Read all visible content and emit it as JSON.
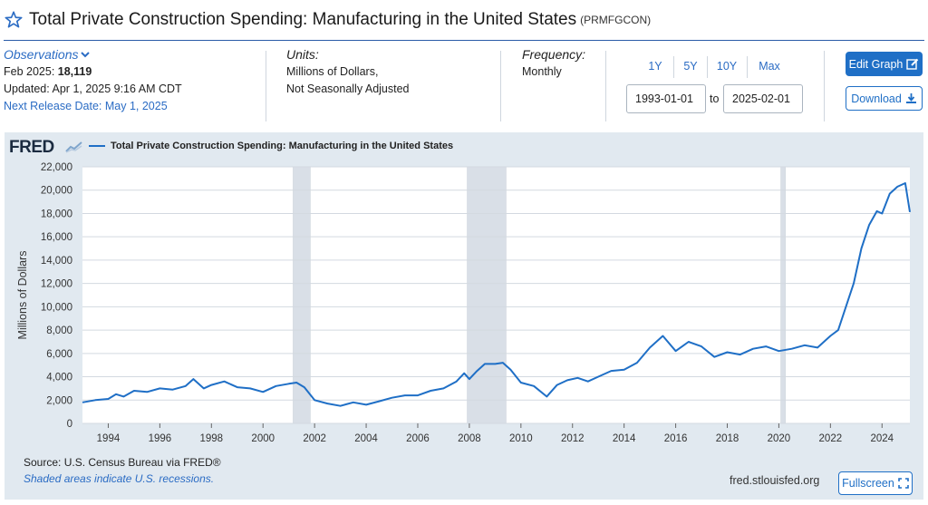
{
  "header": {
    "title": "Total Private Construction Spending: Manufacturing in the United States",
    "series_id": "(PRMFGCON)"
  },
  "observations": {
    "label": "Observations",
    "date_label": "Feb 2025:",
    "value": "18,119",
    "updated": "Updated: Apr 1, 2025 9:16 AM CDT",
    "next_release": "Next Release Date: May 1, 2025"
  },
  "units": {
    "label": "Units:",
    "line1": "Millions of Dollars,",
    "line2": "Not Seasonally Adjusted"
  },
  "frequency": {
    "label": "Frequency:",
    "value": "Monthly"
  },
  "range": {
    "buttons": [
      "1Y",
      "5Y",
      "10Y",
      "Max"
    ],
    "start": "1993-01-01",
    "to_label": "to",
    "end": "2025-02-01"
  },
  "actions": {
    "edit_graph": "Edit Graph",
    "download": "Download",
    "fullscreen": "Fullscreen"
  },
  "graph": {
    "logo": "FRED",
    "legend": "Total Private Construction Spending: Manufacturing in the United States",
    "source": "Source: U.S. Census Bureau via FRED®",
    "shaded_note": "Shaded areas indicate U.S. recessions.",
    "site": "fred.stlouisfed.org"
  },
  "colors": {
    "line": "#1f6fc6",
    "panel_bg": "#e1e9f0",
    "recession": "#d9dfe7",
    "accent": "#1f6fc6"
  },
  "chart_data": {
    "type": "line",
    "ylabel": "Millions of Dollars",
    "ylim": [
      0,
      22000
    ],
    "xlim": [
      1993.0,
      2025.08
    ],
    "y_ticks": [
      "0",
      "2,000",
      "4,000",
      "6,000",
      "8,000",
      "10,000",
      "12,000",
      "14,000",
      "16,000",
      "18,000",
      "20,000",
      "22,000"
    ],
    "x_ticks": [
      "1994",
      "1996",
      "1998",
      "2000",
      "2002",
      "2004",
      "2006",
      "2008",
      "2010",
      "2012",
      "2014",
      "2016",
      "2018",
      "2020",
      "2022",
      "2024"
    ],
    "grid": true,
    "legend_position": "top-left",
    "recessions": [
      [
        2001.17,
        2001.83
      ],
      [
        2007.92,
        2009.42
      ],
      [
        2020.08,
        2020.25
      ]
    ],
    "series": [
      {
        "name": "Total Private Construction Spending: Manufacturing in the United States",
        "x": [
          1993.0,
          1993.5,
          1994.0,
          1994.3,
          1994.6,
          1995.0,
          1995.5,
          1996.0,
          1996.5,
          1997.0,
          1997.3,
          1997.7,
          1998.0,
          1998.5,
          1999.0,
          1999.5,
          2000.0,
          2000.5,
          2001.0,
          2001.3,
          2001.6,
          2002.0,
          2002.5,
          2003.0,
          2003.5,
          2004.0,
          2004.5,
          2005.0,
          2005.5,
          2006.0,
          2006.5,
          2007.0,
          2007.5,
          2007.8,
          2008.0,
          2008.3,
          2008.6,
          2009.0,
          2009.3,
          2009.6,
          2010.0,
          2010.5,
          2011.0,
          2011.4,
          2011.8,
          2012.2,
          2012.6,
          2013.0,
          2013.5,
          2014.0,
          2014.5,
          2015.0,
          2015.5,
          2016.0,
          2016.5,
          2017.0,
          2017.5,
          2018.0,
          2018.5,
          2019.0,
          2019.5,
          2020.0,
          2020.5,
          2021.0,
          2021.5,
          2022.0,
          2022.3,
          2022.6,
          2022.9,
          2023.2,
          2023.5,
          2023.8,
          2024.0,
          2024.3,
          2024.6,
          2024.9,
          2025.08
        ],
        "y": [
          1800,
          2000,
          2100,
          2500,
          2300,
          2800,
          2700,
          3000,
          2900,
          3200,
          3800,
          3000,
          3300,
          3600,
          3100,
          3000,
          2700,
          3200,
          3400,
          3500,
          3100,
          2000,
          1700,
          1500,
          1800,
          1600,
          1900,
          2200,
          2400,
          2400,
          2800,
          3000,
          3600,
          4300,
          3800,
          4500,
          5100,
          5100,
          5200,
          4600,
          3500,
          3200,
          2300,
          3300,
          3700,
          3900,
          3600,
          4000,
          4500,
          4600,
          5200,
          6500,
          7500,
          6200,
          7000,
          6600,
          5700,
          6100,
          5900,
          6400,
          6600,
          6200,
          6400,
          6700,
          6500,
          7500,
          8000,
          10000,
          12000,
          15000,
          17000,
          18200,
          18000,
          19700,
          20300,
          20600,
          18119
        ]
      }
    ]
  }
}
